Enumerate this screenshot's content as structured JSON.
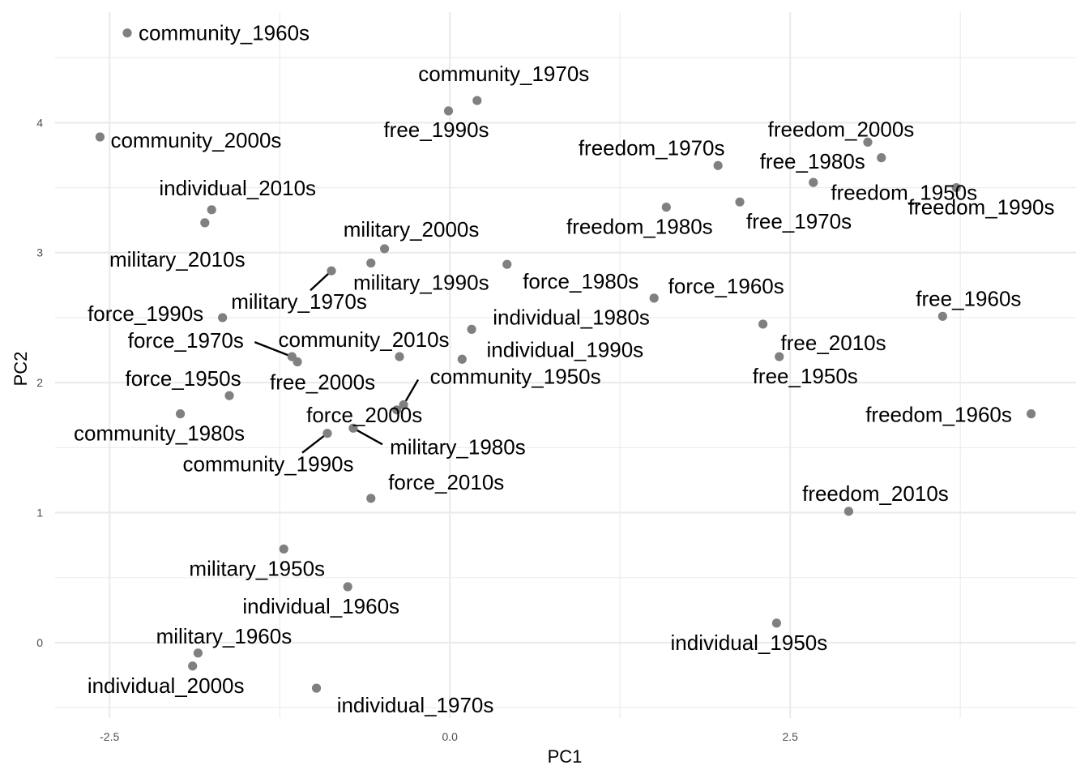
{
  "chart_data": {
    "type": "scatter",
    "title": "",
    "xlabel": "PC1",
    "ylabel": "PC2",
    "xlim": [
      -2.9,
      4.6
    ],
    "ylim": [
      -0.58,
      4.85
    ],
    "x_ticks": [
      "-2.5",
      "0.0",
      "2.5"
    ],
    "y_ticks": [
      "0",
      "1",
      "2",
      "3",
      "4"
    ],
    "grid": true,
    "point_color": "#808080",
    "points": [
      {
        "label": "community_1960s",
        "x": -2.37,
        "y": 4.69
      },
      {
        "label": "community_1970s",
        "x": 0.2,
        "y": 4.17
      },
      {
        "label": "free_1990s",
        "x": -0.01,
        "y": 4.09
      },
      {
        "label": "community_2000s",
        "x": -2.57,
        "y": 3.89
      },
      {
        "label": "freedom_2000s",
        "x": 3.07,
        "y": 3.85
      },
      {
        "label": "freedom_1950s",
        "x": 3.17,
        "y": 3.73
      },
      {
        "label": "freedom_1970s",
        "x": 1.97,
        "y": 3.67
      },
      {
        "label": "free_1980s",
        "x": 2.67,
        "y": 3.54
      },
      {
        "label": "freedom_1990s",
        "x": 3.72,
        "y": 3.5
      },
      {
        "label": "free_1970s",
        "x": 2.13,
        "y": 3.39
      },
      {
        "label": "freedom_1980s",
        "x": 1.59,
        "y": 3.35
      },
      {
        "label": "individual_2010s",
        "x": -1.75,
        "y": 3.33
      },
      {
        "label": "military_2010s",
        "x": -1.8,
        "y": 3.23
      },
      {
        "label": "military_2000s",
        "x": -0.48,
        "y": 3.03
      },
      {
        "label": "military_1990s",
        "x": -0.58,
        "y": 2.92
      },
      {
        "label": "force_1980s",
        "x": 0.42,
        "y": 2.91
      },
      {
        "label": "military_1970s",
        "x": -0.87,
        "y": 2.86
      },
      {
        "label": "force_1960s",
        "x": 1.5,
        "y": 2.65
      },
      {
        "label": "free_1960s",
        "x": 3.62,
        "y": 2.51
      },
      {
        "label": "force_1990s",
        "x": -1.67,
        "y": 2.5
      },
      {
        "label": "free_2010s",
        "x": 2.3,
        "y": 2.45
      },
      {
        "label": "individual_1980s",
        "x": 0.16,
        "y": 2.41
      },
      {
        "label": "community_2010s",
        "x": -0.37,
        "y": 2.2
      },
      {
        "label": "force_1970s",
        "x": -1.16,
        "y": 2.2
      },
      {
        "label": "free_1950s",
        "x": 2.42,
        "y": 2.2
      },
      {
        "label": "individual_1990s",
        "x": 0.09,
        "y": 2.18
      },
      {
        "label": "free_2000s",
        "x": -1.12,
        "y": 2.16
      },
      {
        "label": "force_1950s",
        "x": -1.62,
        "y": 1.9
      },
      {
        "label": "community_1950s",
        "x": -0.34,
        "y": 1.83
      },
      {
        "label": "force_2000s",
        "x": -0.39,
        "y": 1.79
      },
      {
        "label": "community_1980s",
        "x": -1.98,
        "y": 1.76
      },
      {
        "label": "freedom_1960s",
        "x": 4.27,
        "y": 1.76
      },
      {
        "label": "military_1980s",
        "x": -0.71,
        "y": 1.65
      },
      {
        "label": "community_1990s",
        "x": -0.9,
        "y": 1.61
      },
      {
        "label": "force_2010s",
        "x": -0.58,
        "y": 1.11
      },
      {
        "label": "freedom_2010s",
        "x": 2.93,
        "y": 1.01
      },
      {
        "label": "military_1950s",
        "x": -1.22,
        "y": 0.72
      },
      {
        "label": "individual_1960s",
        "x": -0.75,
        "y": 0.43
      },
      {
        "label": "individual_1950s",
        "x": 2.4,
        "y": 0.15
      },
      {
        "label": "military_1960s",
        "x": -1.85,
        "y": -0.08
      },
      {
        "label": "individual_2000s",
        "x": -1.89,
        "y": -0.18
      },
      {
        "label": "individual_1970s",
        "x": -0.98,
        "y": -0.35
      }
    ]
  }
}
